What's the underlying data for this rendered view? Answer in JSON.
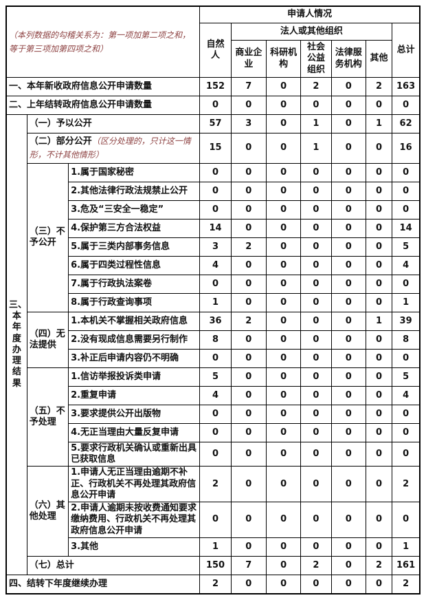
{
  "colors": {
    "border": "#000000",
    "text": "#111111",
    "annotation_red": "#8e4343",
    "background": "#ffffff"
  },
  "header": {
    "note": "（本列数据的勾稽关系为：第一项加第二项之和，等于第三项加第四项之和）",
    "applicant_title": "申请人情况",
    "natural_person": "自然人",
    "legal_org": "法人或其他组织",
    "org_types": [
      "商业企业",
      "科研机构",
      "社会公益组织",
      "法律服务机构",
      "其他"
    ],
    "total": "总计"
  },
  "section3": {
    "label": "三、本年度办理结果"
  },
  "groups": {
    "g3": "（三）不予公开",
    "g4": "（四）无法提供",
    "g5": "（五）不予处理",
    "g6": "（六）其他处理"
  },
  "rows": [
    {
      "label": "一、本年新收政府信息公开申请数量",
      "values": [
        152,
        7,
        0,
        2,
        0,
        2,
        163
      ]
    },
    {
      "label": "二、上年结转政府信息公开申请数量",
      "values": [
        0,
        0,
        0,
        0,
        0,
        0,
        0
      ]
    },
    {
      "label": "（一）予以公开",
      "values": [
        57,
        3,
        0,
        1,
        0,
        1,
        62
      ]
    },
    {
      "label": "（二）部分公开",
      "note": "（区分处理的，只计这一情形，不计其他情形）",
      "values": [
        15,
        0,
        0,
        1,
        0,
        0,
        16
      ]
    },
    {
      "label": "1.属于国家秘密",
      "values": [
        0,
        0,
        0,
        0,
        0,
        0,
        0
      ]
    },
    {
      "label": "2.其他法律行政法规禁止公开",
      "values": [
        0,
        0,
        0,
        0,
        0,
        0,
        0
      ]
    },
    {
      "label": "3.危及“三安全一稳定”",
      "values": [
        0,
        0,
        0,
        0,
        0,
        0,
        0
      ]
    },
    {
      "label": "4.保护第三方合法权益",
      "values": [
        14,
        0,
        0,
        0,
        0,
        0,
        14
      ]
    },
    {
      "label": "5.属于三类内部事务信息",
      "values": [
        3,
        2,
        0,
        0,
        0,
        0,
        5
      ]
    },
    {
      "label": "6.属于四类过程性信息",
      "values": [
        4,
        0,
        0,
        0,
        0,
        0,
        4
      ]
    },
    {
      "label": "7.属于行政执法案卷",
      "values": [
        0,
        0,
        0,
        0,
        0,
        0,
        0
      ]
    },
    {
      "label": "8.属于行政查询事项",
      "values": [
        1,
        0,
        0,
        0,
        0,
        0,
        1
      ]
    },
    {
      "label": "1.本机关不掌握相关政府信息",
      "values": [
        36,
        2,
        0,
        0,
        0,
        1,
        39
      ]
    },
    {
      "label": "2.没有现成信息需要另行制作",
      "values": [
        8,
        0,
        0,
        0,
        0,
        0,
        8
      ]
    },
    {
      "label": "3.补正后申请内容仍不明确",
      "values": [
        0,
        0,
        0,
        0,
        0,
        0,
        0
      ]
    },
    {
      "label": "1.信访举报投诉类申请",
      "values": [
        5,
        0,
        0,
        0,
        0,
        0,
        5
      ]
    },
    {
      "label": "2.重复申请",
      "values": [
        4,
        0,
        0,
        0,
        0,
        0,
        4
      ]
    },
    {
      "label": "3.要求提供公开出版物",
      "values": [
        0,
        0,
        0,
        0,
        0,
        0,
        0
      ]
    },
    {
      "label": "4.无正当理由大量反复申请",
      "values": [
        0,
        0,
        0,
        0,
        0,
        0,
        0
      ]
    },
    {
      "label": "5.要求行政机关确认或重新出具已获取信息",
      "values": [
        0,
        0,
        0,
        0,
        0,
        0,
        0
      ]
    },
    {
      "label": "1.申请人无正当理由逾期不补正、行政机关不再处理其政府信息公开申请",
      "values": [
        2,
        0,
        0,
        0,
        0,
        0,
        2
      ]
    },
    {
      "label": "2.申请人逾期未按收费通知要求缴纳费用、行政机关不再处理其政府信息公开申请",
      "values": [
        0,
        0,
        0,
        0,
        0,
        0,
        0
      ]
    },
    {
      "label": "3.其他",
      "values": [
        1,
        0,
        0,
        0,
        0,
        0,
        1
      ]
    },
    {
      "label": "（七）总计",
      "values": [
        150,
        7,
        0,
        2,
        0,
        2,
        161
      ]
    },
    {
      "label": "四、结转下年度继续办理",
      "values": [
        2,
        0,
        0,
        0,
        0,
        0,
        2
      ]
    }
  ]
}
